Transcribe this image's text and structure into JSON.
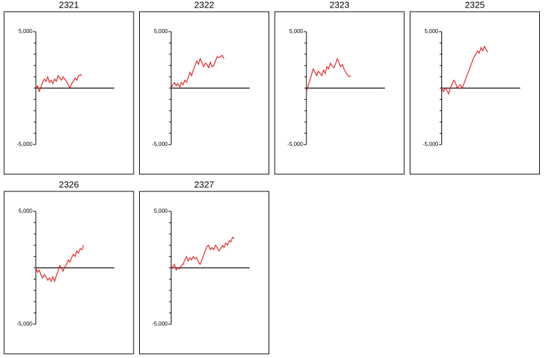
{
  "chart_data": [
    {
      "type": "line",
      "title": "2321",
      "color": "#e02020",
      "xlim": [
        0,
        46
      ],
      "ylim": [
        -5000,
        5000
      ],
      "yticks": [
        {
          "value": 5000,
          "label": "5,000"
        },
        {
          "value": -5000,
          "label": "-5,000"
        }
      ],
      "yminor_ticks": [
        -4000,
        -3000,
        -2000,
        -1000,
        0,
        1000,
        2000,
        3000,
        4000
      ],
      "values": [
        0,
        200,
        -300,
        100,
        500,
        800,
        600,
        1000,
        500,
        700,
        400,
        800,
        600,
        1100,
        900,
        700,
        1000,
        800,
        600,
        300,
        0,
        400,
        600,
        900,
        700,
        1100,
        1200,
        1100
      ]
    },
    {
      "type": "line",
      "title": "2322",
      "color": "#e02020",
      "xlim": [
        0,
        46
      ],
      "ylim": [
        -5000,
        5000
      ],
      "yticks": [
        {
          "value": 5000,
          "label": "5,000"
        },
        {
          "value": -5000,
          "label": "-5,000"
        }
      ],
      "yminor_ticks": [
        -4000,
        -3000,
        -2000,
        -1000,
        0,
        1000,
        2000,
        3000,
        4000
      ],
      "values": [
        0,
        300,
        500,
        200,
        400,
        100,
        500,
        300,
        700,
        500,
        900,
        1400,
        1100,
        1600,
        2000,
        2400,
        2100,
        2600,
        2300,
        1900,
        2200,
        2100,
        1800,
        2300,
        1900,
        2000,
        2400,
        2800,
        2700,
        2800,
        2900,
        2600
      ]
    },
    {
      "type": "line",
      "title": "2323",
      "color": "#e02020",
      "xlim": [
        0,
        46
      ],
      "ylim": [
        -5000,
        5000
      ],
      "yticks": [
        {
          "value": 5000,
          "label": "5,000"
        },
        {
          "value": -5000,
          "label": "-5,000"
        }
      ],
      "yminor_ticks": [
        -4000,
        -3000,
        -2000,
        -1000,
        0,
        1000,
        2000,
        3000,
        4000
      ],
      "values": [
        -300,
        200,
        700,
        1200,
        1700,
        1400,
        1100,
        1500,
        1300,
        1100,
        1600,
        1300,
        1900,
        1700,
        2200,
        2000,
        1800,
        2100,
        2600,
        2300,
        1900,
        2100,
        1700,
        1400,
        1200,
        1000,
        1100
      ]
    },
    {
      "type": "line",
      "title": "2325",
      "color": "#e02020",
      "xlim": [
        0,
        46
      ],
      "ylim": [
        -5000,
        5000
      ],
      "yticks": [
        {
          "value": 5000,
          "label": "5,000"
        },
        {
          "value": -5000,
          "label": "-5,000"
        }
      ],
      "yminor_ticks": [
        -4000,
        -3000,
        -2000,
        -1000,
        0,
        1000,
        2000,
        3000,
        4000
      ],
      "values": [
        0,
        -300,
        0,
        -200,
        -500,
        0,
        300,
        700,
        500,
        0,
        200,
        300,
        0,
        400,
        800,
        1200,
        1600,
        2000,
        2400,
        2800,
        3000,
        3300,
        3100,
        3600,
        3300,
        3700,
        3400,
        3200
      ]
    },
    {
      "type": "line",
      "title": "2326",
      "color": "#e02020",
      "xlim": [
        0,
        46
      ],
      "ylim": [
        -5000,
        5000
      ],
      "yticks": [
        {
          "value": 5000,
          "label": "5,000"
        },
        {
          "value": -5000,
          "label": "-5,000"
        }
      ],
      "yminor_ticks": [
        -4000,
        -3000,
        -2000,
        -1000,
        0,
        1000,
        2000,
        3000,
        4000
      ],
      "values": [
        0,
        -400,
        -200,
        -600,
        -900,
        -600,
        -800,
        -1100,
        -900,
        -1200,
        -800,
        -1200,
        -700,
        -300,
        200,
        0,
        -300,
        100,
        300,
        700,
        500,
        900,
        1200,
        1000,
        1500,
        1300,
        1700,
        1600,
        2000
      ]
    },
    {
      "type": "line",
      "title": "2327",
      "color": "#e02020",
      "xlim": [
        0,
        46
      ],
      "ylim": [
        -5000,
        5000
      ],
      "yticks": [
        {
          "value": 5000,
          "label": "5,000"
        },
        {
          "value": -5000,
          "label": "-5,000"
        }
      ],
      "yminor_ticks": [
        -4000,
        -3000,
        -2000,
        -1000,
        0,
        1000,
        2000,
        3000,
        4000
      ],
      "values": [
        0,
        100,
        300,
        -200,
        0,
        -100,
        200,
        300,
        700,
        1000,
        600,
        900,
        700,
        1000,
        800,
        900,
        500,
        300,
        700,
        1100,
        1500,
        1900,
        2000,
        1600,
        1800,
        1600,
        2000,
        1800,
        1500,
        1700,
        2000,
        1800,
        2200,
        2000,
        2400,
        2300,
        2700,
        2600
      ]
    }
  ]
}
